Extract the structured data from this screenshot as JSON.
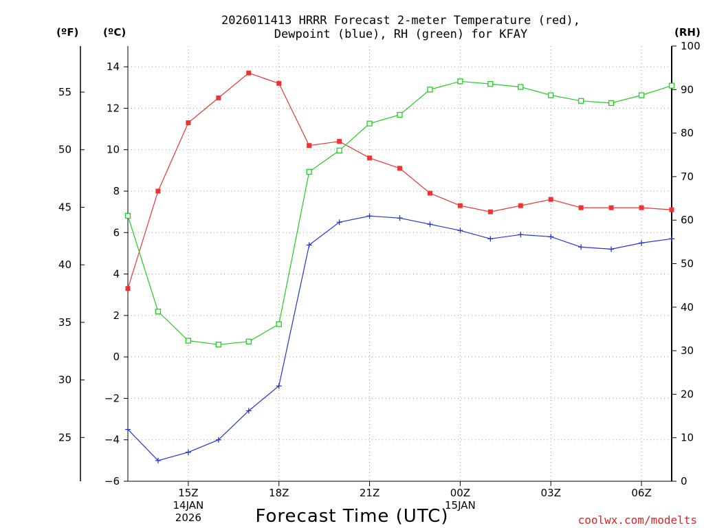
{
  "chart_data": {
    "type": "line",
    "title_lines": [
      "2026011413 HRRR Forecast 2-meter Temperature (red),",
      "Dewpoint (blue), RH (green) for KFAY"
    ],
    "xlabel": "Forecast Time (UTC)",
    "credit": "coolwx.com/modelts",
    "units": {
      "fahrenheit": "(ºF)",
      "celsius": "(ºC)",
      "rh": "(RH)"
    },
    "x_hours": [
      13,
      14,
      15,
      16,
      17,
      18,
      19,
      20,
      21,
      22,
      23,
      24,
      25,
      26,
      27,
      28,
      29,
      30,
      31
    ],
    "x_ticks": [
      {
        "hour": 15,
        "lines": [
          "15Z",
          "14JAN",
          "2026"
        ]
      },
      {
        "hour": 18,
        "lines": [
          "18Z"
        ]
      },
      {
        "hour": 21,
        "lines": [
          "21Z"
        ]
      },
      {
        "hour": 24,
        "lines": [
          "00Z",
          "15JAN"
        ]
      },
      {
        "hour": 27,
        "lines": [
          "03Z"
        ]
      },
      {
        "hour": 30,
        "lines": [
          "06Z"
        ]
      }
    ],
    "y_celsius": {
      "range": [
        -6,
        15
      ],
      "ticks": [
        -6,
        -4,
        -2,
        0,
        2,
        4,
        6,
        8,
        10,
        12,
        14
      ]
    },
    "y_fahrenheit": {
      "ticks": [
        25,
        30,
        35,
        40,
        45,
        50,
        55
      ]
    },
    "y_rh": {
      "range": [
        0,
        100
      ],
      "ticks": [
        0,
        10,
        20,
        30,
        40,
        50,
        60,
        70,
        80,
        90,
        100
      ]
    },
    "grid": true,
    "series": [
      {
        "name": "Temperature",
        "axis": "celsius",
        "color": "#ee3333",
        "marker": "filled-square",
        "values": [
          3.3,
          8.0,
          11.3,
          12.5,
          13.7,
          13.2,
          10.2,
          10.4,
          9.6,
          9.1,
          7.9,
          7.3,
          7.0,
          7.3,
          7.6,
          7.2,
          7.2,
          7.2,
          7.1
        ]
      },
      {
        "name": "Dewpoint",
        "axis": "celsius",
        "color": "#2233dd",
        "marker": "plus",
        "values": [
          -3.5,
          -5.0,
          -4.6,
          -4.0,
          -2.6,
          -1.4,
          5.4,
          6.5,
          6.8,
          6.7,
          6.4,
          6.1,
          5.7,
          5.9,
          5.8,
          5.3,
          5.2,
          5.5,
          5.7
        ]
      },
      {
        "name": "RH",
        "axis": "rh",
        "color": "#22cc22",
        "marker": "open-square",
        "values": [
          61.0,
          39.0,
          32.3,
          31.4,
          32.1,
          36.1,
          71.1,
          76.0,
          82.2,
          84.2,
          90.0,
          91.9,
          91.3,
          90.6,
          88.7,
          87.4,
          86.9,
          88.7,
          90.9
        ]
      }
    ]
  }
}
